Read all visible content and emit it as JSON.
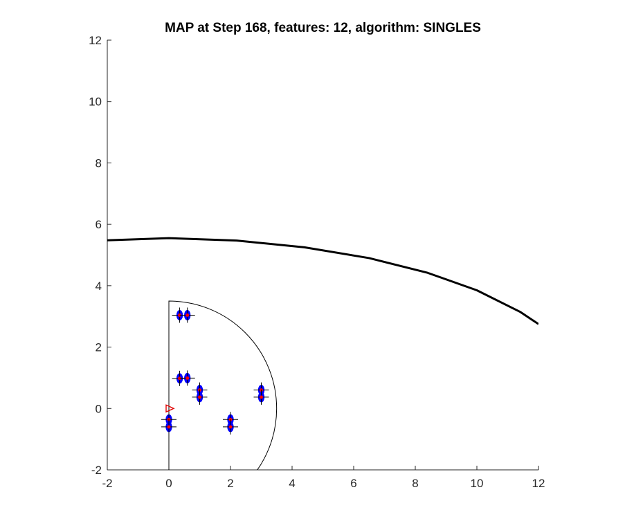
{
  "chart_data": {
    "type": "line",
    "title": "MAP at Step 168, features: 12, algorithm: SINGLES",
    "xlabel": "",
    "ylabel": "",
    "xlim": [
      -2,
      12
    ],
    "ylim": [
      -2,
      12
    ],
    "x_ticks": [
      "-2",
      "0",
      "2",
      "4",
      "6",
      "8",
      "10",
      "12"
    ],
    "y_ticks": [
      "-2",
      "0",
      "2",
      "4",
      "6",
      "8",
      "10",
      "12"
    ],
    "grid": false,
    "series": [
      {
        "kind": "path",
        "x": [
          -2,
          0,
          2.2,
          4.4,
          6.5,
          8.4,
          10,
          11.4,
          12
        ],
        "y": [
          5.48,
          5.55,
          5.47,
          5.25,
          4.9,
          4.42,
          3.85,
          3.15,
          2.75
        ]
      },
      {
        "kind": "sensor-boundary",
        "center": [
          0,
          0
        ],
        "radius": 3.5,
        "angle_range_deg": [
          -90,
          90
        ]
      },
      {
        "kind": "features",
        "points": [
          {
            "x": 0.35,
            "y": 3.04
          },
          {
            "x": 0.6,
            "y": 3.04
          },
          {
            "x": 0.35,
            "y": 0.98
          },
          {
            "x": 0.6,
            "y": 0.99
          },
          {
            "x": 1.0,
            "y": 0.6
          },
          {
            "x": 1.0,
            "y": 0.37
          },
          {
            "x": 3.0,
            "y": 0.6
          },
          {
            "x": 3.0,
            "y": 0.37
          },
          {
            "x": 2.0,
            "y": -0.36
          },
          {
            "x": 2.0,
            "y": -0.6
          },
          {
            "x": 0.0,
            "y": -0.36
          },
          {
            "x": 0.0,
            "y": -0.6
          }
        ]
      },
      {
        "kind": "robot-pose",
        "x": 0,
        "y": 0,
        "heading_deg": 0
      }
    ]
  }
}
